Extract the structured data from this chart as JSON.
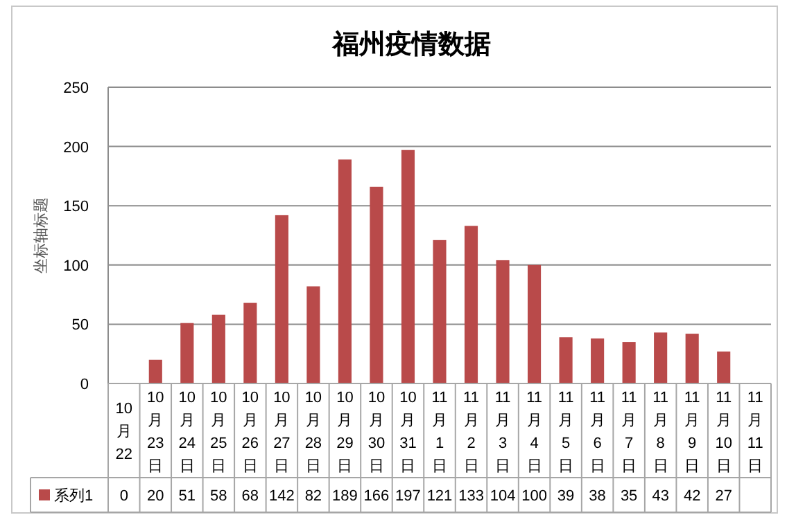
{
  "chart_data": {
    "type": "bar",
    "title": "福州疫情数据",
    "ylabel": "坐标轴标题",
    "categories": [
      "10月22",
      "10月23日",
      "10月24日",
      "10月25日",
      "10月26日",
      "10月27日",
      "10月28日",
      "10月29日",
      "10月30日",
      "10月31日",
      "11月1日",
      "11月2日",
      "11月3日",
      "11月4日",
      "11月5日",
      "11月6日",
      "11月7日",
      "11月8日",
      "11月9日",
      "11月10日",
      "11月11日"
    ],
    "series": [
      {
        "name": "系列1",
        "color": "#b94a4a",
        "values": [
          0,
          20,
          51,
          58,
          68,
          142,
          82,
          189,
          166,
          197,
          121,
          133,
          104,
          100,
          39,
          38,
          35,
          43,
          42,
          27,
          null
        ]
      }
    ],
    "ylim": [
      0,
      250
    ],
    "yticks": [
      0,
      50,
      100,
      150,
      200,
      250
    ],
    "grid": "y",
    "data_labels": true
  }
}
